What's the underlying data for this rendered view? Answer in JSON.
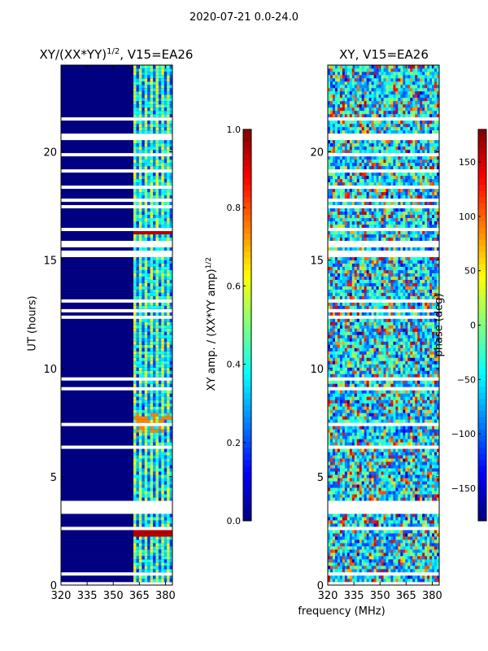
{
  "chart_data": {
    "suptitle": "2020-07-21 0.0-24.0",
    "shared_xlabel": "frequency (MHz)",
    "panels": [
      {
        "type": "heatmap",
        "title": "XY/(XX*YY)^1/2, V15=EA26",
        "title_main": "XY/(XX*YY)",
        "title_sup": "1/2",
        "title_tail": ", V15=EA26",
        "xlim": [
          320,
          384
        ],
        "ylim": [
          0,
          24
        ],
        "xticks": [
          "320",
          "335",
          "350",
          "365",
          "380"
        ],
        "xtick_values": [
          320,
          335,
          350,
          365,
          380
        ],
        "yticks": [
          "0",
          "5",
          "10",
          "15",
          "20"
        ],
        "ytick_values": [
          0,
          5,
          10,
          15,
          20
        ],
        "ylabel": "UT (hours)",
        "colorscale": "jet",
        "colorbar": {
          "range": [
            0.0,
            1.0
          ],
          "ticks": [
            "0.0",
            "0.2",
            "0.4",
            "0.6",
            "0.8",
            "1.0"
          ],
          "tick_values": [
            0.0,
            0.2,
            0.4,
            0.6,
            0.8,
            1.0
          ],
          "label": "XY amp. / (XX*YY amp)^1/2",
          "label_main": "XY amp. / (XX*YY amp)",
          "label_sup": "1/2"
        }
      },
      {
        "type": "heatmap",
        "title": "XY, V15=EA26",
        "xlim": [
          320,
          384
        ],
        "ylim": [
          0,
          24
        ],
        "xticks": [
          "320",
          "335",
          "350",
          "365",
          "380"
        ],
        "xtick_values": [
          320,
          335,
          350,
          365,
          380
        ],
        "yticks": [
          "0",
          "5",
          "10",
          "15",
          "20"
        ],
        "ytick_values": [
          0,
          5,
          10,
          15,
          20
        ],
        "colorscale": "jet",
        "colorbar": {
          "range": [
            -180,
            180
          ],
          "ticks": [
            "−150",
            "−100",
            "−50",
            "0",
            "50",
            "100",
            "150"
          ],
          "tick_values": [
            -150,
            -100,
            -50,
            0,
            50,
            100,
            150
          ],
          "label": "phase (deg)"
        }
      }
    ]
  }
}
